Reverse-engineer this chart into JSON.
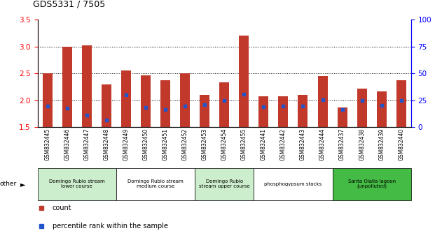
{
  "title": "GDS5331 / 7505",
  "samples": [
    "GSM832445",
    "GSM832446",
    "GSM832447",
    "GSM832448",
    "GSM832449",
    "GSM832450",
    "GSM832451",
    "GSM832452",
    "GSM832453",
    "GSM832454",
    "GSM832455",
    "GSM832441",
    "GSM832442",
    "GSM832443",
    "GSM832444",
    "GSM832437",
    "GSM832438",
    "GSM832439",
    "GSM832440"
  ],
  "bar_heights": [
    2.5,
    3.0,
    3.03,
    2.3,
    2.55,
    2.47,
    2.38,
    2.5,
    2.1,
    2.33,
    3.2,
    2.08,
    2.07,
    2.1,
    2.45,
    1.87,
    2.22,
    2.17,
    2.37
  ],
  "blue_dot_y": [
    1.9,
    1.85,
    1.73,
    1.63,
    2.1,
    1.87,
    1.83,
    1.9,
    1.92,
    2.0,
    2.11,
    1.88,
    1.9,
    1.9,
    2.01,
    1.83,
    2.0,
    1.91,
    2.0
  ],
  "ylim_left": [
    1.5,
    3.5
  ],
  "ylim_right": [
    0,
    100
  ],
  "yticks_left": [
    1.5,
    2.0,
    2.5,
    3.0,
    3.5
  ],
  "yticks_right": [
    0,
    25,
    50,
    75,
    100
  ],
  "bar_color": "#c0392b",
  "dot_color": "#2255cc",
  "bar_width": 0.5,
  "groups": [
    {
      "label": "Domingo Rubio stream\nlower course",
      "indices": [
        0,
        1,
        2,
        3
      ],
      "facecolor": "#cceecc"
    },
    {
      "label": "Domingo Rubio stream\nmedium course",
      "indices": [
        4,
        5,
        6,
        7
      ],
      "facecolor": "#ffffff"
    },
    {
      "label": "Domingo Rubio\nstream upper course",
      "indices": [
        8,
        9,
        10
      ],
      "facecolor": "#cceecc"
    },
    {
      "label": "phosphogypsum stacks",
      "indices": [
        11,
        12,
        13,
        14
      ],
      "facecolor": "#ffffff"
    },
    {
      "label": "Santa Olalla lagoon\n(unpolluted)",
      "indices": [
        15,
        16,
        17,
        18
      ],
      "facecolor": "#44bb44"
    }
  ],
  "legend_count_color": "#c0392b",
  "legend_dot_color": "#2255cc",
  "xtick_bg": "#cccccc"
}
